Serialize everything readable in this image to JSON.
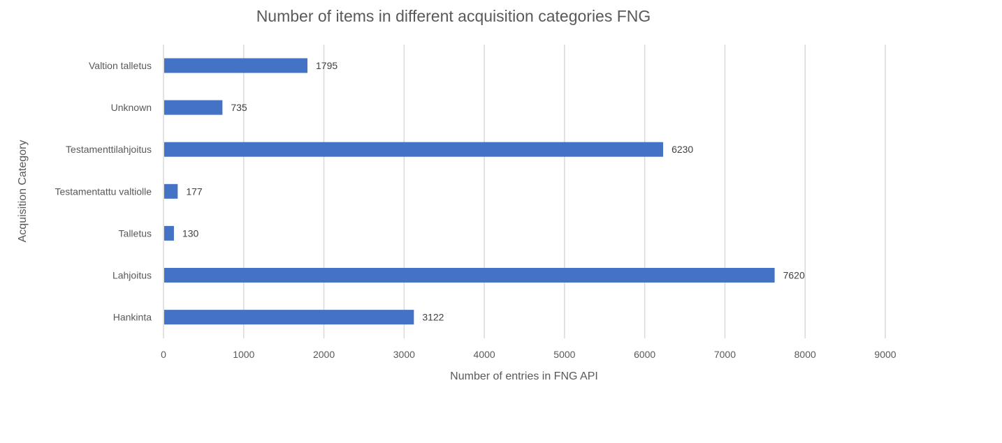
{
  "chart_data": {
    "type": "bar",
    "orientation": "horizontal",
    "title": "Number of items in different acquisition categories FNG",
    "xlabel": "Number of entries in FNG API",
    "ylabel": "Acquisition Category",
    "categories": [
      "Valtion talletus",
      "Unknown",
      "Testamenttilahjoitus",
      "Testamentattu valtiolle",
      "Talletus",
      "Lahjoitus",
      "Hankinta"
    ],
    "values": [
      1795,
      735,
      6230,
      177,
      130,
      7620,
      3122
    ],
    "data_labels": [
      "1795",
      "735",
      "6230",
      "177",
      "130",
      "7620",
      "3122"
    ],
    "xlim": [
      0,
      9000
    ],
    "x_ticks": [
      "0",
      "1000",
      "2000",
      "3000",
      "4000",
      "5000",
      "6000",
      "7000",
      "8000",
      "9000"
    ],
    "grid": "vertical",
    "legend": "none",
    "bar_color": "#4472c4"
  }
}
